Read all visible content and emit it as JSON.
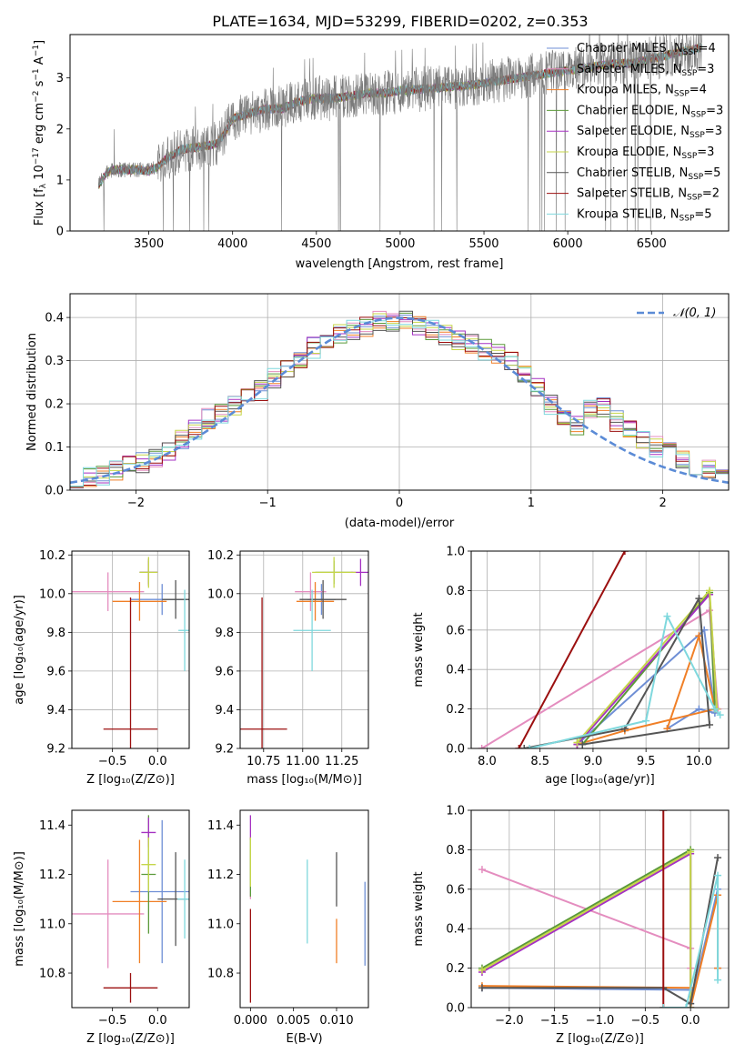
{
  "figure_title": "PLATE=1634, MJD=53299, FIBERID=0202, z=0.353",
  "model_colors": [
    "#6f8fd5",
    "#e48dbf",
    "#f07f26",
    "#5b9a3a",
    "#a531c2",
    "#c5d64a",
    "#555555",
    "#9b0f0f",
    "#7fd8dd"
  ],
  "spectrum": {
    "legend": [
      {
        "label": "Chabrier MILES, N",
        "sub": "SSP",
        "tail": "=4",
        "color": "#6f8fd5"
      },
      {
        "label": "Salpeter MILES, N",
        "sub": "SSP",
        "tail": "=3",
        "color": "#e48dbf"
      },
      {
        "label": "Kroupa MILES, N",
        "sub": "SSP",
        "tail": "=4",
        "color": "#f07f26"
      },
      {
        "label": "Chabrier ELODIE, N",
        "sub": "SSP",
        "tail": "=3",
        "color": "#5b9a3a"
      },
      {
        "label": "Salpeter ELODIE, N",
        "sub": "SSP",
        "tail": "=3",
        "color": "#a531c2"
      },
      {
        "label": "Kroupa ELODIE, N",
        "sub": "SSP",
        "tail": "=3",
        "color": "#c5d64a"
      },
      {
        "label": "Chabrier STELIB, N",
        "sub": "SSP",
        "tail": "=5",
        "color": "#555555"
      },
      {
        "label": "Salpeter STELIB, N",
        "sub": "SSP",
        "tail": "=2",
        "color": "#9b0f0f"
      },
      {
        "label": "Kroupa STELIB, N",
        "sub": "SSP",
        "tail": "=5",
        "color": "#7fd8dd"
      }
    ],
    "xlabel": "wavelength [Angstrom, rest frame]",
    "ylabel": "Flux [f_λ 10^-17 erg cm^-2 s^-1 A^-1]",
    "ylabel_parts": [
      "Flux [f",
      "λ",
      "10",
      "−17",
      " erg cm",
      "−2",
      " s",
      "−1",
      " A",
      "−1",
      "]"
    ],
    "xticks": [
      "3500",
      "4000",
      "4500",
      "5000",
      "5500",
      "6000",
      "6500"
    ],
    "yticks": [
      "0",
      "1",
      "2",
      "3"
    ]
  },
  "histogram": {
    "legend_label": "𝒩(0, 1)",
    "xlabel": "(data-model)/error",
    "ylabel": "Normed distribution",
    "xticks": [
      "−2",
      "−1",
      "0",
      "1",
      "2"
    ],
    "yticks": [
      "0.0",
      "0.1",
      "0.2",
      "0.3",
      "0.4"
    ]
  },
  "panels": {
    "zage": {
      "xlabel": "Z [log₁₀(Z/Z⊙)]",
      "ylabel": "age  [log₁₀(age/yr)]",
      "xticks": [
        "−0.5",
        "0.0"
      ],
      "yticks": [
        "9.2",
        "9.4",
        "9.6",
        "9.8",
        "10.0",
        "10.2"
      ]
    },
    "massage": {
      "xlabel": "mass [log₁₀(M/M⊙)]",
      "ylabel": "",
      "xticks": [
        "10.75",
        "11.00",
        "11.25"
      ],
      "yticks": [
        "9.2",
        "9.4",
        "9.6",
        "9.8",
        "10.0",
        "10.2"
      ]
    },
    "agew": {
      "xlabel": "age  [log₁₀(age/yr)]",
      "ylabel": "mass weight",
      "xticks": [
        "8.0",
        "8.5",
        "9.0",
        "9.5",
        "10.0"
      ],
      "yticks": [
        "0.0",
        "0.2",
        "0.4",
        "0.6",
        "0.8",
        "1.0"
      ]
    },
    "zmass": {
      "xlabel": "Z [log₁₀(Z/Z⊙)]",
      "ylabel": "mass [log₁₀(M/M⊙)]",
      "xticks": [
        "−0.5",
        "0.0"
      ],
      "yticks": [
        "10.8",
        "11.0",
        "11.2",
        "11.4"
      ]
    },
    "ebv": {
      "xlabel": "E(B-V)",
      "ylabel": "",
      "xticks": [
        "0.000",
        "0.005",
        "0.010"
      ],
      "yticks": [
        "10.8",
        "11.0",
        "11.2",
        "11.4"
      ]
    },
    "zw": {
      "xlabel": "Z [log₁₀(Z/Z⊙)]",
      "ylabel": "mass weight",
      "xticks": [
        "−2.0",
        "−1.5",
        "−1.0",
        "−0.5",
        "0.0"
      ],
      "yticks": [
        "0.0",
        "0.2",
        "0.4",
        "0.6",
        "0.8",
        "1.0"
      ]
    }
  },
  "chart_data": [
    {
      "type": "line",
      "title": "PLATE=1634, MJD=53299, FIBERID=0202, z=0.353",
      "xlabel": "wavelength [Angstrom, rest frame]",
      "ylabel": "Flux [f_λ 10^-17 erg cm^-2 s^-1 A^-1]",
      "xlim": [
        3030,
        6960
      ],
      "ylim": [
        0,
        3.85
      ],
      "legend": "top-right",
      "data_range": [
        3200,
        6800
      ],
      "continuum_points": [
        [
          3200,
          0.9
        ],
        [
          3250,
          1.15
        ],
        [
          3300,
          1.2
        ],
        [
          3350,
          1.2
        ],
        [
          3400,
          1.2
        ],
        [
          3450,
          1.2
        ],
        [
          3500,
          1.18
        ],
        [
          3550,
          1.25
        ],
        [
          3600,
          1.4
        ],
        [
          3700,
          1.6
        ],
        [
          3800,
          1.65
        ],
        [
          3900,
          1.7
        ],
        [
          3950,
          1.9
        ],
        [
          4000,
          2.2
        ],
        [
          4100,
          2.3
        ],
        [
          4200,
          2.4
        ],
        [
          4300,
          2.4
        ],
        [
          4400,
          2.55
        ],
        [
          4500,
          2.6
        ],
        [
          4600,
          2.6
        ],
        [
          4700,
          2.65
        ],
        [
          4800,
          2.7
        ],
        [
          4900,
          2.7
        ],
        [
          5000,
          2.75
        ],
        [
          5200,
          2.8
        ],
        [
          5400,
          2.85
        ],
        [
          5600,
          2.95
        ],
        [
          5800,
          3.05
        ],
        [
          6000,
          3.15
        ],
        [
          6200,
          3.25
        ],
        [
          6400,
          3.3
        ],
        [
          6600,
          3.45
        ],
        [
          6800,
          3.6
        ]
      ],
      "grid": false
    },
    {
      "type": "bar",
      "subtype": "step-histogram",
      "xlabel": "(data-model)/error",
      "ylabel": "Normed distribution",
      "xlim": [
        -2.5,
        2.5
      ],
      "ylim": [
        0,
        0.455
      ],
      "bin_edges": [
        -2.5,
        -2.4,
        -2.3,
        -2.2,
        -2.1,
        -2.0,
        -1.9,
        -1.8,
        -1.7,
        -1.6,
        -1.5,
        -1.4,
        -1.3,
        -1.2,
        -1.1,
        -1.0,
        -0.9,
        -0.8,
        -0.7,
        -0.6,
        -0.5,
        -0.4,
        -0.3,
        -0.2,
        -0.1,
        0.0,
        0.1,
        0.2,
        0.3,
        0.4,
        0.5,
        0.6,
        0.7,
        0.8,
        0.9,
        1.0,
        1.1,
        1.2,
        1.3,
        1.4,
        1.5,
        1.6,
        1.7,
        1.8,
        1.9,
        2.0,
        2.1,
        2.2,
        2.3,
        2.4,
        2.5
      ],
      "base_density": [
        0.012,
        0.028,
        0.035,
        0.045,
        0.055,
        0.065,
        0.078,
        0.09,
        0.115,
        0.14,
        0.165,
        0.18,
        0.195,
        0.21,
        0.23,
        0.26,
        0.28,
        0.3,
        0.33,
        0.35,
        0.36,
        0.37,
        0.38,
        0.39,
        0.39,
        0.39,
        0.38,
        0.37,
        0.36,
        0.35,
        0.34,
        0.325,
        0.315,
        0.3,
        0.27,
        0.24,
        0.2,
        0.17,
        0.15,
        0.19,
        0.19,
        0.16,
        0.14,
        0.12,
        0.1,
        0.09,
        0.075,
        0.06,
        0.05,
        0.035
      ],
      "series_names": [
        "Chabrier MILES",
        "Salpeter MILES",
        "Kroupa MILES",
        "Chabrier ELODIE",
        "Salpeter ELODIE",
        "Kroupa ELODIE",
        "Chabrier STELIB",
        "Salpeter STELIB",
        "Kroupa STELIB"
      ],
      "overlay": {
        "name": "𝒩(0, 1)",
        "type": "line",
        "style": "dashed",
        "color": "#5b8bd6",
        "mu": 0,
        "sigma": 1
      },
      "legend": "top-right",
      "grid": true
    },
    {
      "type": "scatter",
      "subtype": "errorbar",
      "xlabel": "Z [log10(Z/Z⊙)]",
      "ylabel": "age [log10(age/yr)]",
      "xlim": [
        -0.95,
        0.35
      ],
      "ylim": [
        9.2,
        10.22
      ],
      "points": [
        {
          "x": 0.05,
          "y": 9.97,
          "xerr": 0.35,
          "yerr": 0.08,
          "color": "#6f8fd5"
        },
        {
          "x": -0.55,
          "y": 10.01,
          "xerr": 0.4,
          "yerr": 0.1,
          "color": "#e48dbf"
        },
        {
          "x": -0.2,
          "y": 9.96,
          "xerr": 0.3,
          "yerr": 0.1,
          "color": "#f07f26"
        },
        {
          "x": -0.1,
          "y": 10.11,
          "xerr": 0.1,
          "yerr": 0.06,
          "color": "#5b9a3a"
        },
        {
          "x": -0.1,
          "y": 10.11,
          "xerr": 0.1,
          "yerr": 0.07,
          "color": "#a531c2"
        },
        {
          "x": -0.1,
          "y": 10.11,
          "xerr": 0.1,
          "yerr": 0.08,
          "color": "#c5d64a"
        },
        {
          "x": 0.2,
          "y": 9.97,
          "xerr": 0.15,
          "yerr": 0.1,
          "color": "#555555"
        },
        {
          "x": -0.3,
          "y": 9.3,
          "xerr": 0.3,
          "yerr": 0.68,
          "color": "#9b0f0f"
        },
        {
          "x": 0.3,
          "y": 9.81,
          "xerr": 0.07,
          "yerr": 0.21,
          "color": "#7fd8dd"
        }
      ],
      "grid": true
    },
    {
      "type": "scatter",
      "subtype": "errorbar",
      "xlabel": "mass [log10(M/M⊙)]",
      "ylabel": "",
      "xlim": [
        10.6,
        11.42
      ],
      "ylim": [
        9.2,
        10.22
      ],
      "points": [
        {
          "x": 11.12,
          "y": 9.97,
          "xerr": 0.09,
          "yerr": 0.08,
          "color": "#6f8fd5"
        },
        {
          "x": 11.05,
          "y": 10.01,
          "xerr": 0.1,
          "yerr": 0.1,
          "color": "#e48dbf"
        },
        {
          "x": 11.08,
          "y": 9.96,
          "xerr": 0.12,
          "yerr": 0.1,
          "color": "#f07f26"
        },
        {
          "x": 11.2,
          "y": 10.11,
          "xerr": 0.12,
          "yerr": 0.06,
          "color": "#5b9a3a"
        },
        {
          "x": 11.37,
          "y": 10.11,
          "xerr": 0.06,
          "yerr": 0.07,
          "color": "#a531c2"
        },
        {
          "x": 11.2,
          "y": 10.11,
          "xerr": 0.14,
          "yerr": 0.08,
          "color": "#c5d64a"
        },
        {
          "x": 11.13,
          "y": 9.97,
          "xerr": 0.15,
          "yerr": 0.1,
          "color": "#555555"
        },
        {
          "x": 10.74,
          "y": 9.3,
          "xerr": 0.16,
          "yerr": 0.68,
          "color": "#9b0f0f"
        },
        {
          "x": 11.06,
          "y": 9.81,
          "xerr": 0.12,
          "yerr": 0.21,
          "color": "#7fd8dd"
        }
      ],
      "grid": true
    },
    {
      "type": "line",
      "xlabel": "age [log10(age/yr)]",
      "ylabel": "mass weight",
      "xlim": [
        7.85,
        10.28
      ],
      "ylim": [
        0,
        1.0
      ],
      "series": [
        {
          "name": "Chabrier MILES",
          "x": [
            9.7,
            10.0,
            10.15,
            10.05,
            8.85
          ],
          "y": [
            0.1,
            0.2,
            0.18,
            0.6,
            0.02
          ],
          "color": "#6f8fd5"
        },
        {
          "name": "Salpeter MILES",
          "x": [
            7.95,
            10.1,
            10.18
          ],
          "y": [
            0.0,
            0.7,
            0.2
          ],
          "color": "#e48dbf"
        },
        {
          "name": "Kroupa MILES",
          "x": [
            9.7,
            10.0,
            10.15,
            9.3,
            8.85
          ],
          "y": [
            0.1,
            0.57,
            0.2,
            0.09,
            0.02
          ],
          "color": "#f07f26"
        },
        {
          "name": "Chabrier ELODIE",
          "x": [
            8.9,
            10.1,
            10.15
          ],
          "y": [
            0.02,
            0.79,
            0.2
          ],
          "color": "#5b9a3a"
        },
        {
          "name": "Salpeter ELODIE",
          "x": [
            8.85,
            10.1,
            10.17
          ],
          "y": [
            0.02,
            0.78,
            0.2
          ],
          "color": "#a531c2"
        },
        {
          "name": "Kroupa ELODIE",
          "x": [
            8.85,
            10.1,
            10.17
          ],
          "y": [
            0.03,
            0.8,
            0.2
          ],
          "color": "#c5d64a"
        },
        {
          "name": "Chabrier STELIB",
          "x": [
            8.35,
            9.3,
            10.0,
            10.1,
            8.9
          ],
          "y": [
            0.0,
            0.1,
            0.76,
            0.12,
            0.02
          ],
          "color": "#555555"
        },
        {
          "name": "Salpeter STELIB",
          "x": [
            8.3,
            9.3
          ],
          "y": [
            0.0,
            1.0
          ],
          "color": "#9b0f0f"
        },
        {
          "name": "Kroupa STELIB",
          "x": [
            8.4,
            9.5,
            9.7,
            10.15,
            10.2
          ],
          "y": [
            0.0,
            0.14,
            0.67,
            0.2,
            0.17
          ],
          "color": "#7fd8dd"
        }
      ],
      "grid": true
    },
    {
      "type": "scatter",
      "subtype": "errorbar",
      "xlabel": "Z [log10(Z/Z⊙)]",
      "ylabel": "mass [log10(M/M⊙)]",
      "xlim": [
        -0.95,
        0.35
      ],
      "ylim": [
        10.66,
        11.46
      ],
      "points": [
        {
          "x": 0.05,
          "y": 11.13,
          "xerr": 0.35,
          "yerr": 0.29,
          "color": "#6f8fd5"
        },
        {
          "x": -0.55,
          "y": 11.04,
          "xerr": 0.4,
          "yerr": 0.22,
          "color": "#e48dbf"
        },
        {
          "x": -0.2,
          "y": 11.09,
          "xerr": 0.3,
          "yerr": 0.25,
          "color": "#f07f26"
        },
        {
          "x": -0.1,
          "y": 11.2,
          "xerr": 0.08,
          "yerr": 0.24,
          "color": "#5b9a3a"
        },
        {
          "x": -0.1,
          "y": 11.37,
          "xerr": 0.08,
          "yerr": 0.06,
          "color": "#a531c2"
        },
        {
          "x": -0.1,
          "y": 11.24,
          "xerr": 0.08,
          "yerr": 0.11,
          "color": "#c5d64a"
        },
        {
          "x": 0.2,
          "y": 11.1,
          "xerr": 0.2,
          "yerr": 0.19,
          "color": "#555555"
        },
        {
          "x": -0.3,
          "y": 10.74,
          "xerr": 0.3,
          "yerr": 0.06,
          "color": "#9b0f0f"
        },
        {
          "x": 0.3,
          "y": 11.1,
          "xerr": 0.08,
          "yerr": 0.16,
          "color": "#7fd8dd"
        }
      ],
      "grid": false
    },
    {
      "type": "scatter",
      "subtype": "errorbar",
      "xlabel": "E(B-V)",
      "ylabel": "",
      "xlim": [
        -0.0012,
        0.0137
      ],
      "ylim": [
        10.66,
        11.46
      ],
      "points": [
        {
          "x": 0.0133,
          "y": 11.0,
          "yerr": 0.17,
          "color": "#6f8fd5"
        },
        {
          "x": 0.0,
          "y": 11.2,
          "yerr": 0.1,
          "color": "#e48dbf"
        },
        {
          "x": 0.01,
          "y": 10.93,
          "yerr": 0.09,
          "color": "#f07f26"
        },
        {
          "x": 0.0,
          "y": 11.23,
          "yerr": 0.12,
          "color": "#5b9a3a"
        },
        {
          "x": 0.0,
          "y": 11.39,
          "yerr": 0.05,
          "color": "#a531c2"
        },
        {
          "x": 0.0,
          "y": 11.25,
          "yerr": 0.1,
          "color": "#c5d64a"
        },
        {
          "x": 0.01,
          "y": 11.18,
          "yerr": 0.11,
          "color": "#555555"
        },
        {
          "x": 0.0,
          "y": 10.87,
          "yerr": 0.19,
          "color": "#9b0f0f"
        },
        {
          "x": 0.0066,
          "y": 11.09,
          "yerr": 0.17,
          "color": "#7fd8dd"
        }
      ],
      "grid": false
    },
    {
      "type": "line",
      "xlabel": "Z [log10(Z/Z⊙)]",
      "ylabel": "mass weight",
      "xlim": [
        -2.42,
        0.42
      ],
      "ylim": [
        0,
        1.0
      ],
      "series": [
        {
          "name": "Chabrier MILES",
          "x": [
            -2.3,
            0.0,
            0.0,
            0.3,
            0.3
          ],
          "y": [
            0.1,
            0.09,
            0.02,
            0.6,
            0.2
          ],
          "color": "#6f8fd5"
        },
        {
          "name": "Salpeter MILES",
          "x": [
            -2.3,
            0.0,
            0.0
          ],
          "y": [
            0.7,
            0.3,
            0.2
          ],
          "color": "#e48dbf"
        },
        {
          "name": "Kroupa MILES",
          "x": [
            -2.3,
            0.0,
            0.0,
            0.3,
            0.3
          ],
          "y": [
            0.11,
            0.1,
            0.0,
            0.57,
            0.2
          ],
          "color": "#f07f26"
        },
        {
          "name": "Chabrier ELODIE",
          "x": [
            -2.3,
            0.0,
            0.0
          ],
          "y": [
            0.2,
            0.8,
            0.0
          ],
          "color": "#5b9a3a"
        },
        {
          "name": "Salpeter ELODIE",
          "x": [
            -2.3,
            0.0,
            0.0
          ],
          "y": [
            0.18,
            0.78,
            0.0
          ],
          "color": "#a531c2"
        },
        {
          "name": "Kroupa ELODIE",
          "x": [
            -2.3,
            0.0,
            0.0
          ],
          "y": [
            0.19,
            0.79,
            0.0
          ],
          "color": "#c5d64a"
        },
        {
          "name": "Chabrier STELIB",
          "x": [
            -2.3,
            -0.3,
            0.0,
            0.3
          ],
          "y": [
            0.1,
            0.1,
            0.02,
            0.76
          ],
          "color": "#555555"
        },
        {
          "name": "Salpeter STELIB",
          "x": [
            -0.3,
            -0.3
          ],
          "y": [
            0.0,
            1.0
          ],
          "color": "#9b0f0f"
        },
        {
          "name": "Kroupa STELIB",
          "x": [
            -0.3,
            -0.05,
            0.3,
            0.3
          ],
          "y": [
            0.0,
            0.0,
            0.67,
            0.14
          ],
          "color": "#7fd8dd"
        }
      ],
      "grid": true
    }
  ]
}
